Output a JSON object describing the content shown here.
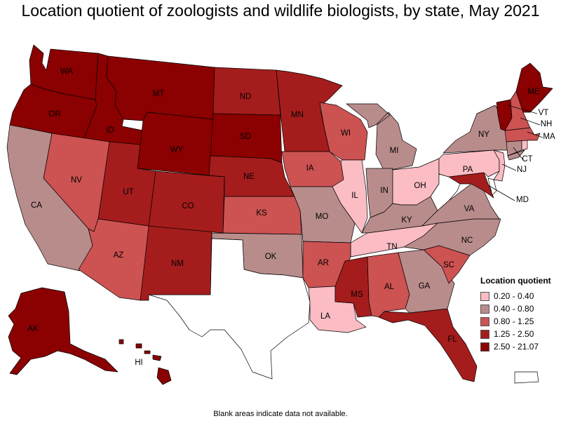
{
  "title": "Location quotient of zoologists and wildlife biologists, by state, May 2021",
  "footnote": "Blank areas indicate data not available.",
  "legend": {
    "title": "Location quotient",
    "classes": [
      {
        "label": "0.20 - 0.40",
        "color": "#fbbcc4"
      },
      {
        "label": "0.40 - 0.80",
        "color": "#b98c8c"
      },
      {
        "label": "0.80 - 1.25",
        "color": "#cd5252"
      },
      {
        "label": "1.25 - 2.50",
        "color": "#a51c1c"
      },
      {
        "label": "2.50 - 21.07",
        "color": "#8b0000"
      }
    ]
  },
  "no_data_color": "#ffffff",
  "states": {
    "WA": "2.50 - 21.07",
    "OR": "2.50 - 21.07",
    "ID": "2.50 - 21.07",
    "MT": "2.50 - 21.07",
    "WY": "2.50 - 21.07",
    "SD": "2.50 - 21.07",
    "AK": "2.50 - 21.07",
    "HI": "2.50 - 21.07",
    "ME": "2.50 - 21.07",
    "VT": "2.50 - 21.07",
    "ND": "1.25 - 2.50",
    "MN": "1.25 - 2.50",
    "NE": "1.25 - 2.50",
    "UT": "1.25 - 2.50",
    "CO": "1.25 - 2.50",
    "NM": "1.25 - 2.50",
    "MS": "1.25 - 2.50",
    "FL": "1.25 - 2.50",
    "MD": "1.25 - 2.50",
    "NV": "0.80 - 1.25",
    "AZ": "0.80 - 1.25",
    "KS": "0.80 - 1.25",
    "IA": "0.80 - 1.25",
    "WI": "0.80 - 1.25",
    "AR": "0.80 - 1.25",
    "AL": "0.80 - 1.25",
    "SC": "0.80 - 1.25",
    "NH": "0.80 - 1.25",
    "MA": "0.80 - 1.25",
    "CA": "0.40 - 0.80",
    "OK": "0.40 - 0.80",
    "MO": "0.40 - 0.80",
    "IN": "0.40 - 0.80",
    "MI": "0.40 - 0.80",
    "KY": "0.40 - 0.80",
    "GA": "0.40 - 0.80",
    "NC": "0.40 - 0.80",
    "VA": "0.40 - 0.80",
    "NY": "0.40 - 0.80",
    "CT": "0.40 - 0.80",
    "IL": "0.20 - 0.40",
    "OH": "0.20 - 0.40",
    "TN": "0.20 - 0.40",
    "LA": "0.20 - 0.40",
    "PA": "0.20 - 0.40",
    "NJ": "0.20 - 0.40",
    "RI": "0.20 - 0.40",
    "TX": null,
    "WV": null,
    "DE": null,
    "PR": null
  },
  "state_labels": {
    "WA": "WA",
    "OR": "OR",
    "ID": "ID",
    "MT": "MT",
    "WY": "WY",
    "ND": "ND",
    "SD": "SD",
    "NE": "NE",
    "MN": "MN",
    "IA": "IA",
    "WI": "WI",
    "MI": "MI",
    "IL": "IL",
    "IN": "IN",
    "OH": "OH",
    "PA": "PA",
    "NY": "NY",
    "ME": "ME",
    "VT": "VT",
    "NH": "NH",
    "MA": "MA",
    "CT": "CT",
    "NJ": "NJ",
    "MD": "MD",
    "VA": "VA",
    "KY": "KY",
    "TN": "TN",
    "NC": "NC",
    "SC": "SC",
    "GA": "GA",
    "AL": "AL",
    "MS": "MS",
    "LA": "LA",
    "AR": "AR",
    "MO": "MO",
    "KS": "KS",
    "OK": "OK",
    "CO": "CO",
    "UT": "UT",
    "NV": "NV",
    "CA": "CA",
    "AZ": "AZ",
    "NM": "NM",
    "FL": "FL",
    "AK": "AK",
    "HI": "HI"
  }
}
